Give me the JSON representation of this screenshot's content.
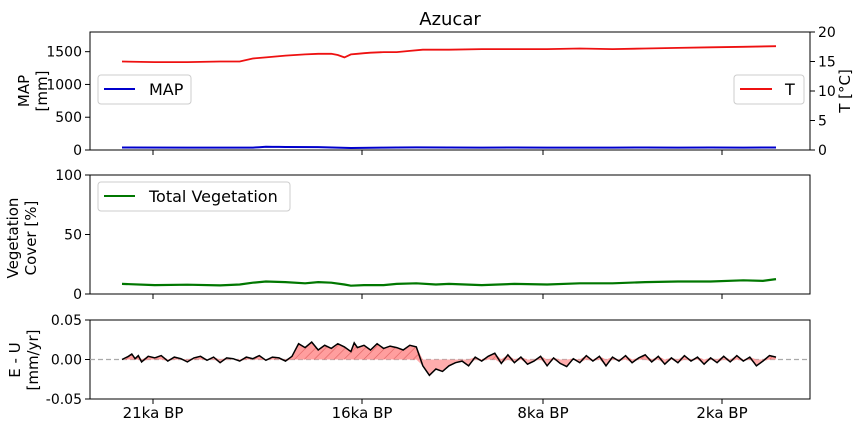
{
  "title": "Azucar",
  "x_tick_labels": [
    "21ka BP",
    "16ka BP",
    "8ka BP",
    "2ka BP"
  ],
  "colors": {
    "map": "#0000cc",
    "temperature": "#ee1111",
    "vegetation": "#007700",
    "eu_line": "#000000",
    "eu_fill": "#ff9999",
    "zero_line": "#aaaaaa"
  },
  "chart_data": [
    {
      "type": "line",
      "panel": "top",
      "x_domain": [
        0,
        100
      ],
      "left_axis": {
        "label_lines": [
          "MAP",
          "[mm]"
        ],
        "ylim": [
          0,
          1800
        ],
        "ticks": [
          0,
          500,
          1000,
          1500
        ],
        "tick_labels": [
          "0",
          "500",
          "1000",
          "1500"
        ]
      },
      "right_axis": {
        "label": "T [°C]",
        "ylim": [
          0,
          20
        ],
        "ticks": [
          0,
          5,
          10,
          15,
          20
        ],
        "tick_labels": [
          "0",
          "5",
          "10",
          "15",
          "20"
        ]
      },
      "legends": [
        {
          "label": "MAP",
          "position": "center-left"
        },
        {
          "label": "T",
          "position": "center-right"
        }
      ],
      "series": [
        {
          "name": "MAP",
          "axis": "left",
          "x": [
            0,
            10,
            20,
            21,
            22,
            23,
            24,
            25,
            30,
            35,
            40,
            42,
            45,
            50,
            55,
            60,
            65,
            70,
            75,
            80,
            85,
            90,
            95,
            100
          ],
          "values": [
            38,
            36,
            37,
            42,
            50,
            48,
            47,
            46,
            44,
            30,
            36,
            38,
            40,
            38,
            36,
            38,
            37,
            36,
            37,
            38,
            37,
            38,
            37,
            38
          ]
        },
        {
          "name": "T",
          "axis": "right",
          "x": [
            0,
            5,
            10,
            15,
            18,
            20,
            22,
            25,
            28,
            30,
            32,
            33,
            34,
            35,
            36,
            37,
            38,
            40,
            42,
            44,
            46,
            48,
            50,
            55,
            60,
            65,
            70,
            75,
            80,
            85,
            90,
            95,
            100
          ],
          "values": [
            15.0,
            14.9,
            14.9,
            15.0,
            15.0,
            15.5,
            15.7,
            16.0,
            16.2,
            16.3,
            16.3,
            16.1,
            15.7,
            16.2,
            16.3,
            16.4,
            16.5,
            16.6,
            16.6,
            16.8,
            17.0,
            17.0,
            17.0,
            17.1,
            17.1,
            17.1,
            17.2,
            17.1,
            17.2,
            17.3,
            17.4,
            17.5,
            17.6
          ]
        }
      ]
    },
    {
      "type": "line",
      "panel": "middle",
      "x_domain": [
        0,
        100
      ],
      "y_axis": {
        "label_lines": [
          "Vegetation",
          "Cover [%]"
        ],
        "ylim": [
          0,
          100
        ],
        "ticks": [
          0,
          50,
          100
        ],
        "tick_labels": [
          "0",
          "50",
          "100"
        ]
      },
      "legends": [
        {
          "label": "Total Vegetation",
          "position": "top-left"
        }
      ],
      "series": [
        {
          "name": "Total Vegetation",
          "x": [
            0,
            5,
            10,
            15,
            18,
            20,
            22,
            25,
            28,
            30,
            32,
            34,
            35,
            37,
            40,
            42,
            45,
            48,
            50,
            55,
            60,
            65,
            70,
            75,
            80,
            85,
            90,
            95,
            98,
            100
          ],
          "values": [
            8.5,
            7.5,
            7.8,
            7.2,
            8.0,
            9.5,
            10.5,
            10.0,
            9.0,
            10.0,
            9.5,
            8.0,
            7.0,
            7.5,
            7.5,
            8.5,
            9.0,
            8.0,
            8.5,
            7.5,
            8.5,
            8.0,
            9.0,
            9.0,
            10.0,
            10.5,
            10.5,
            11.5,
            11.0,
            12.5
          ]
        }
      ]
    },
    {
      "type": "area",
      "panel": "bottom",
      "x_domain": [
        0,
        100
      ],
      "y_axis": {
        "label_lines": [
          "E - U",
          "[mm/yr]"
        ],
        "ylim": [
          -0.05,
          0.05
        ],
        "ticks": [
          -0.05,
          0.0,
          0.05
        ],
        "tick_labels": [
          "-0.05",
          "0.00",
          "0.05"
        ]
      },
      "zero_line": true,
      "series": [
        {
          "name": "E - U",
          "x": [
            0,
            1,
            1.5,
            2,
            2.5,
            3,
            4,
            5,
            6,
            7,
            8,
            9,
            10,
            11,
            12,
            13,
            14,
            15,
            16,
            17,
            18,
            19,
            20,
            21,
            22,
            23,
            24,
            25,
            26,
            27,
            28,
            29,
            30,
            31,
            32,
            33,
            34,
            35,
            35.5,
            36,
            37,
            38,
            39,
            40,
            41,
            42,
            43,
            44,
            45,
            46,
            47,
            48,
            49,
            50,
            51,
            52,
            53,
            54,
            55,
            56,
            57,
            58,
            59,
            60,
            61,
            62,
            63,
            64,
            65,
            66,
            67,
            68,
            69,
            70,
            71,
            72,
            73,
            74,
            75,
            76,
            77,
            78,
            79,
            80,
            81,
            82,
            83,
            84,
            85,
            86,
            87,
            88,
            89,
            90,
            91,
            92,
            93,
            94,
            95,
            96,
            97,
            98,
            99,
            100
          ],
          "values": [
            0.0,
            0.004,
            0.007,
            0.001,
            0.005,
            -0.003,
            0.004,
            0.002,
            0.005,
            -0.002,
            0.003,
            0.001,
            -0.003,
            0.002,
            0.004,
            -0.001,
            0.003,
            -0.004,
            0.002,
            0.001,
            -0.002,
            0.003,
            0.001,
            0.005,
            -0.001,
            0.003,
            0.002,
            -0.002,
            0.004,
            0.02,
            0.015,
            0.022,
            0.012,
            0.018,
            0.014,
            0.02,
            0.016,
            0.01,
            0.021,
            0.015,
            0.018,
            0.012,
            0.02,
            0.014,
            0.017,
            0.015,
            0.012,
            0.018,
            0.016,
            -0.008,
            -0.02,
            -0.012,
            -0.015,
            -0.008,
            -0.004,
            -0.002,
            -0.008,
            0.003,
            -0.002,
            0.004,
            0.008,
            -0.005,
            0.006,
            -0.004,
            0.003,
            -0.006,
            -0.002,
            0.004,
            -0.008,
            0.002,
            -0.005,
            -0.009,
            0.001,
            -0.004,
            0.005,
            -0.002,
            0.004,
            -0.008,
            0.003,
            -0.002,
            0.005,
            -0.004,
            0.002,
            0.006,
            -0.003,
            0.004,
            -0.006,
            0.002,
            -0.004,
            0.005,
            -0.002,
            0.003,
            -0.006,
            0.002,
            -0.004,
            0.004,
            -0.003,
            0.005,
            -0.002,
            0.003,
            -0.008,
            -0.002,
            0.005,
            0.003
          ]
        }
      ]
    }
  ]
}
